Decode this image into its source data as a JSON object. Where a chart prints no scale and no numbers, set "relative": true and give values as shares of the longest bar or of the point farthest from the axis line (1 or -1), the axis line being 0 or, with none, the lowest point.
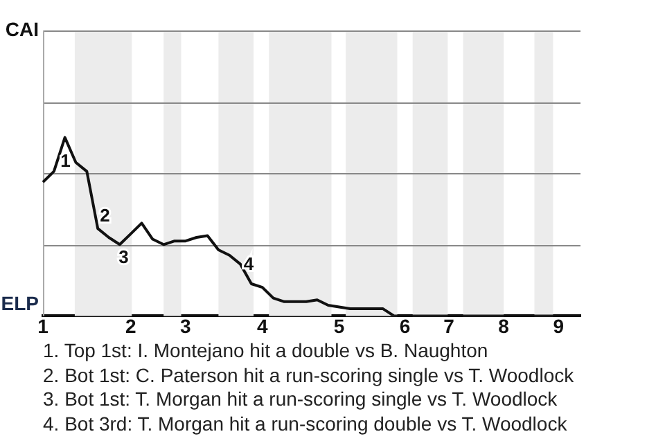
{
  "chart_data": {
    "type": "line",
    "marker": "none",
    "line_style": "solid",
    "legend": false,
    "relative": true,
    "categories": [
      "1",
      null,
      null,
      null,
      null,
      null,
      null,
      null,
      "2",
      null,
      null,
      null,
      null,
      "3",
      null,
      null,
      null,
      null,
      null,
      null,
      "4",
      null,
      null,
      null,
      null,
      null,
      null,
      "5",
      null,
      null,
      null,
      null,
      null,
      "6",
      null,
      null,
      null,
      "7",
      null,
      null,
      null,
      null,
      "8",
      null,
      null,
      null,
      null,
      "9",
      null,
      null
    ],
    "series": [
      {
        "color": "#111111",
        "values": [
          0.75,
          0.81,
          1,
          0.86,
          0.81,
          0.49,
          0.44,
          0.4,
          0.46,
          0.52,
          0.43,
          0.4,
          0.42,
          0.42,
          0.44,
          0.45,
          0.37,
          0.34,
          0.29,
          0.18,
          0.16,
          0.1,
          0.08,
          0.08,
          0.08,
          0.09,
          0.06,
          0.05,
          0.04,
          0.04,
          0.04,
          0.04,
          0,
          0,
          0,
          0,
          0,
          0,
          0,
          0,
          0,
          0,
          0,
          0,
          0,
          0,
          0,
          0,
          0,
          0
        ]
      }
    ],
    "ref_lines": [
      {
        "axis": "y",
        "value": 0.4,
        "color": "#888888"
      },
      {
        "axis": "y",
        "value": 0.8,
        "color": "#888888"
      },
      {
        "axis": "y",
        "value": 1.2,
        "color": "#888888"
      }
    ],
    "annotations": [
      "CAI",
      "ELP",
      "1",
      "2",
      "3",
      "4",
      "1. Top 1st: I. Montejano hit a double vs B. Naughton",
      "2. Bot 1st: C. Paterson hit a run-scoring single vs T. Woodlock",
      "3. Bot 1st: T. Morgan hit a run-scoring single vs T. Woodlock",
      "4. Bot 3rd: T. Morgan hit a run-scoring double vs T. Woodlock"
    ]
  }
}
